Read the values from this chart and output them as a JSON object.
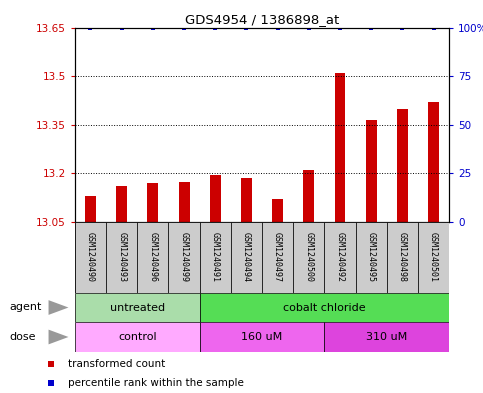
{
  "title": "GDS4954 / 1386898_at",
  "samples": [
    "GSM1240490",
    "GSM1240493",
    "GSM1240496",
    "GSM1240499",
    "GSM1240491",
    "GSM1240494",
    "GSM1240497",
    "GSM1240500",
    "GSM1240492",
    "GSM1240495",
    "GSM1240498",
    "GSM1240501"
  ],
  "bar_values": [
    13.13,
    13.16,
    13.17,
    13.175,
    13.195,
    13.185,
    13.12,
    13.21,
    13.51,
    13.365,
    13.4,
    13.42
  ],
  "percentile_values": [
    100,
    100,
    100,
    100,
    100,
    100,
    100,
    100,
    100,
    100,
    100,
    100
  ],
  "ymin": 13.05,
  "ymax": 13.65,
  "yticks": [
    13.05,
    13.2,
    13.35,
    13.5,
    13.65
  ],
  "ytick_labels": [
    "13.05",
    "13.2",
    "13.35",
    "13.5",
    "13.65"
  ],
  "y2ticks": [
    0,
    25,
    50,
    75,
    100
  ],
  "y2tick_labels": [
    "0",
    "25",
    "50",
    "75",
    "100%"
  ],
  "bar_color": "#cc0000",
  "percentile_color": "#0000cc",
  "agent_groups": [
    {
      "label": "untreated",
      "start": 0,
      "end": 4,
      "color": "#aaddaa"
    },
    {
      "label": "cobalt chloride",
      "start": 4,
      "end": 12,
      "color": "#55dd55"
    }
  ],
  "dose_groups": [
    {
      "label": "control",
      "start": 0,
      "end": 4,
      "color": "#ffaaff"
    },
    {
      "label": "160 uM",
      "start": 4,
      "end": 8,
      "color": "#ee66ee"
    },
    {
      "label": "310 uM",
      "start": 8,
      "end": 12,
      "color": "#dd44dd"
    }
  ],
  "legend_items": [
    {
      "label": "transformed count",
      "color": "#cc0000"
    },
    {
      "label": "percentile rank within the sample",
      "color": "#0000cc"
    }
  ],
  "ylabel_color": "#cc0000",
  "y2label_color": "#0000cc",
  "sample_bg_color": "#cccccc",
  "arrow_color": "#999999"
}
